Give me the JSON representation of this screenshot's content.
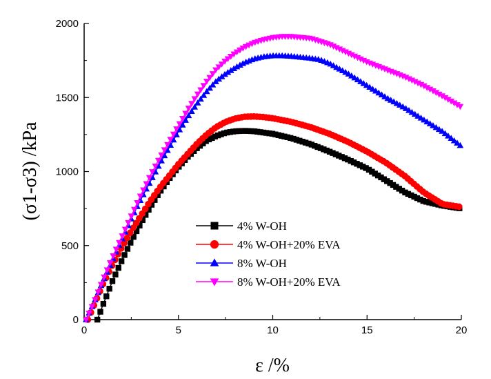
{
  "chart_data": {
    "type": "line",
    "xlabel": "ε /%",
    "ylabel": "(σ1-σ3) /kPa",
    "xlim": [
      0,
      20
    ],
    "ylim": [
      0,
      2000
    ],
    "xticks": [
      "0",
      "5",
      "10",
      "15",
      "20"
    ],
    "yticks": [
      "0",
      "500",
      "1000",
      "1500",
      "2000"
    ],
    "grid": false,
    "legend_position": "center-bottom",
    "series": [
      {
        "name": "4% W-OH",
        "color": "#000000",
        "marker": "square",
        "points": [
          [
            0.7,
            0
          ],
          [
            1.0,
            100
          ],
          [
            1.5,
            260
          ],
          [
            2.0,
            400
          ],
          [
            2.5,
            530
          ],
          [
            3.0,
            650
          ],
          [
            3.5,
            760
          ],
          [
            4.0,
            860
          ],
          [
            4.5,
            950
          ],
          [
            5.0,
            1030
          ],
          [
            5.5,
            1100
          ],
          [
            6.0,
            1160
          ],
          [
            6.5,
            1210
          ],
          [
            7.0,
            1240
          ],
          [
            7.5,
            1262
          ],
          [
            8.0,
            1272
          ],
          [
            8.5,
            1275
          ],
          [
            9.0,
            1272
          ],
          [
            10.0,
            1255
          ],
          [
            11.0,
            1225
          ],
          [
            12.0,
            1185
          ],
          [
            13.0,
            1135
          ],
          [
            14.0,
            1080
          ],
          [
            15.0,
            1020
          ],
          [
            16.0,
            940
          ],
          [
            17.0,
            860
          ],
          [
            18.0,
            800
          ],
          [
            19.0,
            770
          ],
          [
            20.0,
            750
          ]
        ]
      },
      {
        "name": "4% W-OH+20% EVA",
        "color": "#ff0000",
        "marker": "circle",
        "points": [
          [
            0.2,
            0
          ],
          [
            0.5,
            90
          ],
          [
            1.0,
            240
          ],
          [
            1.5,
            370
          ],
          [
            2.0,
            490
          ],
          [
            2.5,
            600
          ],
          [
            3.0,
            700
          ],
          [
            3.5,
            800
          ],
          [
            4.0,
            890
          ],
          [
            4.5,
            970
          ],
          [
            5.0,
            1050
          ],
          [
            5.5,
            1120
          ],
          [
            6.0,
            1190
          ],
          [
            6.5,
            1250
          ],
          [
            7.0,
            1300
          ],
          [
            7.5,
            1335
          ],
          [
            8.0,
            1358
          ],
          [
            8.5,
            1370
          ],
          [
            9.0,
            1372
          ],
          [
            9.5,
            1368
          ],
          [
            10.0,
            1360
          ],
          [
            11.0,
            1335
          ],
          [
            12.0,
            1300
          ],
          [
            13.0,
            1255
          ],
          [
            14.0,
            1200
          ],
          [
            15.0,
            1135
          ],
          [
            16.0,
            1060
          ],
          [
            17.0,
            970
          ],
          [
            18.0,
            860
          ],
          [
            19.0,
            780
          ],
          [
            20.0,
            760
          ]
        ]
      },
      {
        "name": "8% W-OH",
        "color": "#0000ff",
        "marker": "triangle-up",
        "points": [
          [
            0.1,
            0
          ],
          [
            0.5,
            110
          ],
          [
            1.0,
            260
          ],
          [
            1.5,
            400
          ],
          [
            2.0,
            540
          ],
          [
            2.5,
            680
          ],
          [
            3.0,
            810
          ],
          [
            3.5,
            930
          ],
          [
            4.0,
            1050
          ],
          [
            4.5,
            1160
          ],
          [
            5.0,
            1270
          ],
          [
            5.5,
            1370
          ],
          [
            6.0,
            1460
          ],
          [
            6.5,
            1540
          ],
          [
            7.0,
            1610
          ],
          [
            7.5,
            1660
          ],
          [
            8.0,
            1700
          ],
          [
            8.5,
            1735
          ],
          [
            9.0,
            1760
          ],
          [
            9.5,
            1775
          ],
          [
            10.0,
            1782
          ],
          [
            10.5,
            1782
          ],
          [
            11.0,
            1778
          ],
          [
            12.0,
            1765
          ],
          [
            12.5,
            1755
          ],
          [
            13.0,
            1730
          ],
          [
            14.0,
            1660
          ],
          [
            15.0,
            1580
          ],
          [
            16.0,
            1500
          ],
          [
            17.0,
            1430
          ],
          [
            18.0,
            1350
          ],
          [
            19.0,
            1270
          ],
          [
            20.0,
            1170
          ]
        ]
      },
      {
        "name": "8% W-OH+20% EVA",
        "color": "#ff00ff",
        "marker": "triangle-down",
        "points": [
          [
            0.1,
            0
          ],
          [
            0.5,
            110
          ],
          [
            1.0,
            270
          ],
          [
            1.5,
            420
          ],
          [
            2.0,
            560
          ],
          [
            2.5,
            700
          ],
          [
            3.0,
            840
          ],
          [
            3.5,
            970
          ],
          [
            4.0,
            1090
          ],
          [
            4.5,
            1200
          ],
          [
            5.0,
            1310
          ],
          [
            5.5,
            1420
          ],
          [
            6.0,
            1520
          ],
          [
            6.5,
            1610
          ],
          [
            7.0,
            1690
          ],
          [
            7.5,
            1750
          ],
          [
            8.0,
            1800
          ],
          [
            8.5,
            1840
          ],
          [
            9.0,
            1870
          ],
          [
            9.5,
            1890
          ],
          [
            10.0,
            1905
          ],
          [
            10.5,
            1912
          ],
          [
            11.0,
            1912
          ],
          [
            12.0,
            1900
          ],
          [
            13.0,
            1860
          ],
          [
            14.0,
            1800
          ],
          [
            15.0,
            1740
          ],
          [
            16.0,
            1690
          ],
          [
            17.0,
            1640
          ],
          [
            18.0,
            1580
          ],
          [
            19.0,
            1510
          ],
          [
            20.0,
            1435
          ]
        ]
      }
    ]
  }
}
